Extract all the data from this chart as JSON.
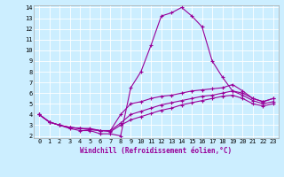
{
  "xlabel": "Windchill (Refroidissement éolien,°C)",
  "background_color": "#cceeff",
  "line_color": "#990099",
  "xlim": [
    -0.5,
    23.5
  ],
  "ylim": [
    1.8,
    14.2
  ],
  "yticks": [
    2,
    3,
    4,
    5,
    6,
    7,
    8,
    9,
    10,
    11,
    12,
    13,
    14
  ],
  "xticks": [
    0,
    1,
    2,
    3,
    4,
    5,
    6,
    7,
    8,
    9,
    10,
    11,
    12,
    13,
    14,
    15,
    16,
    17,
    18,
    19,
    20,
    21,
    22,
    23
  ],
  "lines": [
    {
      "x": [
        0,
        1,
        2,
        3,
        4,
        5,
        6,
        7,
        8,
        9,
        10,
        11,
        12,
        13,
        14,
        15,
        16,
        17,
        18,
        19,
        20,
        21,
        22,
        23
      ],
      "y": [
        4.0,
        3.3,
        3.0,
        2.7,
        2.5,
        2.5,
        2.2,
        2.2,
        2.0,
        6.5,
        8.0,
        10.5,
        13.2,
        13.5,
        14.0,
        13.2,
        12.2,
        9.0,
        7.5,
        6.2,
        6.0,
        5.5,
        5.2,
        5.5
      ]
    },
    {
      "x": [
        0,
        1,
        2,
        3,
        4,
        5,
        6,
        7,
        8,
        9,
        10,
        11,
        12,
        13,
        14,
        15,
        16,
        17,
        18,
        19,
        20,
        21,
        22,
        23
      ],
      "y": [
        4.0,
        3.3,
        3.0,
        2.8,
        2.7,
        2.7,
        2.5,
        2.5,
        4.0,
        5.0,
        5.2,
        5.5,
        5.7,
        5.8,
        6.0,
        6.2,
        6.3,
        6.4,
        6.5,
        6.8,
        6.2,
        5.5,
        5.2,
        5.5
      ]
    },
    {
      "x": [
        0,
        1,
        2,
        3,
        4,
        5,
        6,
        7,
        8,
        9,
        10,
        11,
        12,
        13,
        14,
        15,
        16,
        17,
        18,
        19,
        20,
        21,
        22,
        23
      ],
      "y": [
        4.0,
        3.3,
        3.0,
        2.8,
        2.7,
        2.6,
        2.5,
        2.5,
        3.2,
        4.0,
        4.3,
        4.6,
        4.9,
        5.1,
        5.3,
        5.5,
        5.7,
        5.8,
        6.0,
        6.2,
        5.8,
        5.3,
        5.0,
        5.2
      ]
    },
    {
      "x": [
        0,
        1,
        2,
        3,
        4,
        5,
        6,
        7,
        8,
        9,
        10,
        11,
        12,
        13,
        14,
        15,
        16,
        17,
        18,
        19,
        20,
        21,
        22,
        23
      ],
      "y": [
        4.0,
        3.3,
        3.0,
        2.8,
        2.7,
        2.6,
        2.5,
        2.4,
        3.0,
        3.5,
        3.8,
        4.1,
        4.4,
        4.6,
        4.9,
        5.1,
        5.3,
        5.5,
        5.7,
        5.8,
        5.5,
        5.0,
        4.8,
        5.0
      ]
    }
  ],
  "tick_fontsize": 5,
  "xlabel_fontsize": 5.5,
  "grid_color": "#ffffff",
  "grid_linewidth": 0.6,
  "line_width": 0.8,
  "marker_size": 3
}
